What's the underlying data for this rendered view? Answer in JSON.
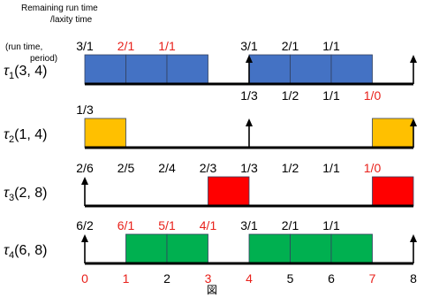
{
  "header": {
    "top_line1": "Remaining run time",
    "top_line2": "/laxity time",
    "left_line1": "(run time,",
    "left_line2": "period)"
  },
  "colors": {
    "tau1": "#4472c4",
    "tau2": "#ffc000",
    "tau3": "#ff0000",
    "tau4": "#00b050",
    "black_text": "#000000",
    "red_text": "#e8201a"
  },
  "time_axis": {
    "ticks": [
      {
        "label": "0",
        "color": "red"
      },
      {
        "label": "1",
        "color": "red"
      },
      {
        "label": "2",
        "color": "black"
      },
      {
        "label": "3",
        "color": "red"
      },
      {
        "label": "4",
        "color": "red"
      },
      {
        "label": "5",
        "color": "black"
      },
      {
        "label": "6",
        "color": "black"
      },
      {
        "label": "7",
        "color": "red"
      },
      {
        "label": "8",
        "color": "black"
      }
    ]
  },
  "caption": "図",
  "tasks": [
    {
      "id": "tau1",
      "label_symbol": "τ",
      "label_sub": "1",
      "label_params": "(3, 4)",
      "color_key": "tau1",
      "run_blocks": [
        [
          0,
          3
        ],
        [
          4,
          7
        ]
      ],
      "arrivals": [
        4,
        8
      ],
      "labels_above": [
        {
          "text": "3/1",
          "time": 0,
          "color": "black"
        },
        {
          "text": "2/1",
          "time": 1,
          "color": "red"
        },
        {
          "text": "1/1",
          "time": 2,
          "color": "red"
        },
        {
          "text": "3/1",
          "time": 4,
          "color": "black"
        },
        {
          "text": "2/1",
          "time": 5,
          "color": "black"
        },
        {
          "text": "1/1",
          "time": 6,
          "color": "black"
        }
      ],
      "labels_below": [
        {
          "text": "1/3",
          "time": 4,
          "color": "black"
        },
        {
          "text": "1/2",
          "time": 5,
          "color": "black"
        },
        {
          "text": "1/1",
          "time": 6,
          "color": "black"
        },
        {
          "text": "1/0",
          "time": 7,
          "color": "red"
        }
      ]
    },
    {
      "id": "tau2",
      "label_symbol": "τ",
      "label_sub": "2",
      "label_params": "(1, 4)",
      "color_key": "tau2",
      "run_blocks": [
        [
          0,
          1
        ],
        [
          7,
          8
        ]
      ],
      "arrivals": [
        4,
        8
      ],
      "labels_above": [
        {
          "text": "1/3",
          "time": 0,
          "color": "black"
        }
      ],
      "labels_below": []
    },
    {
      "id": "tau3",
      "label_symbol": "τ",
      "label_sub": "3",
      "label_params": "(2, 8)",
      "color_key": "tau3",
      "run_blocks": [
        [
          3,
          4
        ],
        [
          7,
          8
        ]
      ],
      "arrivals": [
        0
      ],
      "labels_above": [
        {
          "text": "2/6",
          "time": 0,
          "color": "black"
        },
        {
          "text": "2/5",
          "time": 1,
          "color": "black"
        },
        {
          "text": "2/4",
          "time": 2,
          "color": "black"
        },
        {
          "text": "2/3",
          "time": 3,
          "color": "black"
        },
        {
          "text": "1/3",
          "time": 4,
          "color": "black"
        },
        {
          "text": "1/2",
          "time": 5,
          "color": "black"
        },
        {
          "text": "1/1",
          "time": 6,
          "color": "black"
        },
        {
          "text": "1/0",
          "time": 7,
          "color": "red"
        }
      ],
      "labels_below": []
    },
    {
      "id": "tau4",
      "label_symbol": "τ",
      "label_sub": "4",
      "label_params": "(6, 8)",
      "color_key": "tau4",
      "run_blocks": [
        [
          1,
          3
        ],
        [
          4,
          7
        ]
      ],
      "arrivals": [
        0,
        8
      ],
      "labels_above": [
        {
          "text": "6/2",
          "time": 0,
          "color": "black"
        },
        {
          "text": "6/1",
          "time": 1,
          "color": "red"
        },
        {
          "text": "5/1",
          "time": 2,
          "color": "red"
        },
        {
          "text": "4/1",
          "time": 3,
          "color": "red"
        },
        {
          "text": "3/1",
          "time": 4,
          "color": "black"
        },
        {
          "text": "2/1",
          "time": 5,
          "color": "black"
        },
        {
          "text": "1/1",
          "time": 6,
          "color": "black"
        }
      ],
      "labels_below": []
    }
  ]
}
